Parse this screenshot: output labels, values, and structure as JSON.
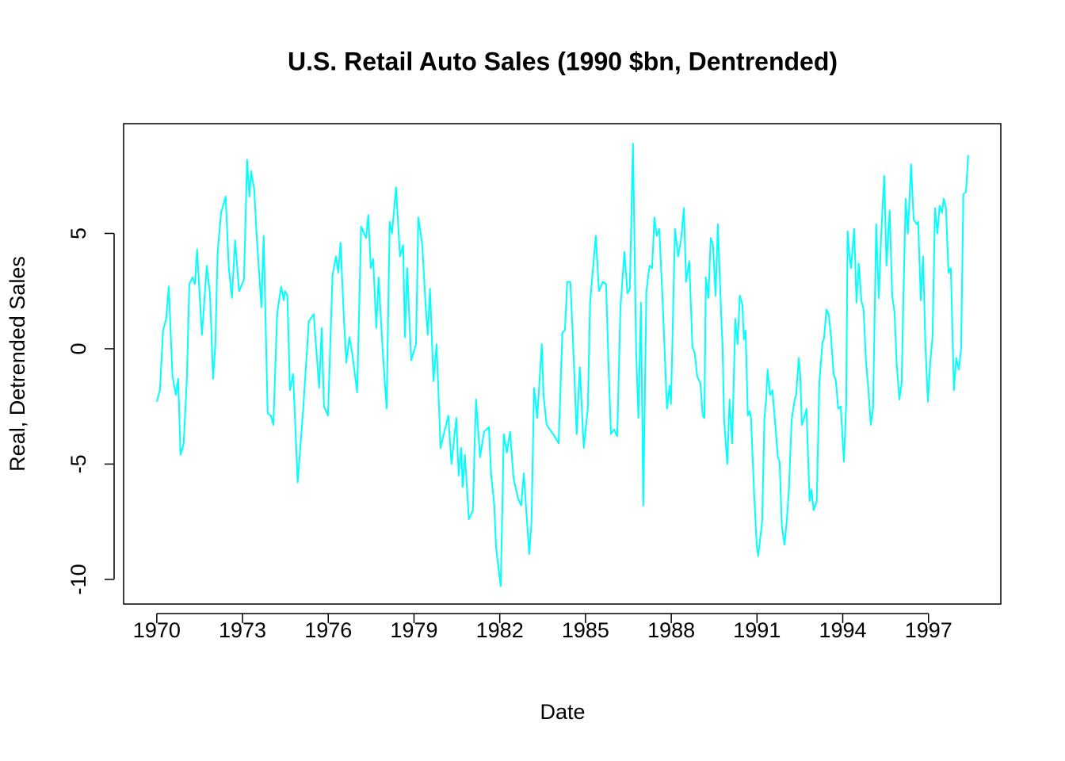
{
  "chart_data": {
    "type": "line",
    "title": "U.S. Retail Auto Sales (1990 $bn, Dentrended)",
    "x_label": "Date",
    "y_label": "Real, Detrended Sales",
    "xlim": [
      1968.84,
      1999.53
    ],
    "ylim": [
      -11.07,
      9.76
    ],
    "xticks": [
      1970,
      1973,
      1976,
      1979,
      1982,
      1985,
      1988,
      1991,
      1994,
      1997
    ],
    "yticks": [
      -10,
      -5,
      0,
      5
    ],
    "series": [
      {
        "color": "#00FFFF",
        "x": [
          1970.0,
          1970.11,
          1970.22,
          1970.33,
          1970.42,
          1970.55,
          1970.67,
          1970.75,
          1970.83,
          1970.94,
          1971.05,
          1971.14,
          1971.25,
          1971.33,
          1971.41,
          1971.58,
          1971.75,
          1971.86,
          1971.97,
          1972.05,
          1972.13,
          1972.25,
          1972.41,
          1972.52,
          1972.63,
          1972.74,
          1972.88,
          1973.05,
          1973.16,
          1973.24,
          1973.3,
          1973.41,
          1973.49,
          1973.66,
          1973.74,
          1973.88,
          1973.99,
          1974.08,
          1974.21,
          1974.35,
          1974.44,
          1974.49,
          1974.57,
          1974.66,
          1974.77,
          1974.93,
          1975.13,
          1975.32,
          1975.49,
          1975.68,
          1975.77,
          1975.85,
          1975.99,
          1976.15,
          1976.27,
          1976.35,
          1976.43,
          1976.54,
          1976.63,
          1976.74,
          1976.85,
          1977.01,
          1977.15,
          1977.32,
          1977.4,
          1977.49,
          1977.57,
          1977.68,
          1977.76,
          1977.9,
          1978.04,
          1978.15,
          1978.23,
          1978.37,
          1978.51,
          1978.62,
          1978.68,
          1978.76,
          1978.9,
          1979.07,
          1979.15,
          1979.29,
          1979.4,
          1979.48,
          1979.56,
          1979.68,
          1979.79,
          1979.93,
          1980.06,
          1980.2,
          1980.31,
          1980.48,
          1980.56,
          1980.65,
          1980.7,
          1980.78,
          1980.92,
          1981.06,
          1981.12,
          1981.17,
          1981.31,
          1981.45,
          1981.62,
          1981.7,
          1981.81,
          1981.87,
          1982.03,
          1982.09,
          1982.14,
          1982.25,
          1982.36,
          1982.48,
          1982.64,
          1982.75,
          1982.84,
          1983.03,
          1983.11,
          1983.2,
          1983.31,
          1983.47,
          1983.53,
          1983.64,
          1983.92,
          1984.06,
          1984.19,
          1984.28,
          1984.36,
          1984.47,
          1984.56,
          1984.69,
          1984.8,
          1984.94,
          1985.08,
          1985.16,
          1985.36,
          1985.47,
          1985.61,
          1985.72,
          1985.8,
          1985.89,
          1986.0,
          1986.11,
          1986.22,
          1986.36,
          1986.47,
          1986.55,
          1986.66,
          1986.77,
          1986.85,
          1986.94,
          1987.02,
          1987.13,
          1987.24,
          1987.33,
          1987.41,
          1987.49,
          1987.58,
          1987.69,
          1987.85,
          1987.94,
          1987.99,
          1988.13,
          1988.24,
          1988.35,
          1988.44,
          1988.52,
          1988.63,
          1988.74,
          1988.82,
          1988.91,
          1989.02,
          1989.1,
          1989.16,
          1989.21,
          1989.3,
          1989.38,
          1989.46,
          1989.55,
          1989.63,
          1989.77,
          1989.79,
          1989.85,
          1989.96,
          1990.04,
          1990.13,
          1990.24,
          1990.32,
          1990.4,
          1990.49,
          1990.54,
          1990.6,
          1990.68,
          1990.74,
          1990.79,
          1990.9,
          1990.99,
          1991.04,
          1991.18,
          1991.26,
          1991.32,
          1991.37,
          1991.46,
          1991.54,
          1991.62,
          1991.73,
          1991.79,
          1991.87,
          1991.96,
          1992.04,
          1992.12,
          1992.21,
          1992.32,
          1992.37,
          1992.46,
          1992.51,
          1992.57,
          1992.65,
          1992.73,
          1992.84,
          1992.9,
          1992.98,
          1993.09,
          1993.18,
          1993.29,
          1993.34,
          1993.43,
          1993.51,
          1993.59,
          1993.68,
          1993.76,
          1993.84,
          1993.93,
          1994.04,
          1994.12,
          1994.17,
          1994.23,
          1994.29,
          1994.4,
          1994.48,
          1994.56,
          1994.65,
          1994.73,
          1994.81,
          1994.9,
          1994.98,
          1995.06,
          1995.17,
          1995.26,
          1995.34,
          1995.45,
          1995.53,
          1995.64,
          1995.73,
          1995.81,
          1995.89,
          1995.98,
          1996.06,
          1996.12,
          1996.2,
          1996.28,
          1996.39,
          1996.48,
          1996.59,
          1996.64,
          1996.73,
          1996.81,
          1996.89,
          1996.98,
          1997.06,
          1997.14,
          1997.23,
          1997.31,
          1997.39,
          1997.47,
          1997.53,
          1997.61,
          1997.7,
          1997.78,
          1997.89,
          1997.97,
          1998.06,
          1998.14,
          1998.22,
          1998.31,
          1998.39
        ],
        "values": [
          -2.3,
          -1.8,
          0.8,
          1.3,
          2.7,
          -1.2,
          -2.0,
          -1.3,
          -4.6,
          -4.1,
          -1.4,
          2.8,
          3.1,
          2.8,
          4.3,
          0.6,
          3.6,
          2.4,
          -1.3,
          0.2,
          4.2,
          5.9,
          6.6,
          3.5,
          2.2,
          4.7,
          2.5,
          3.0,
          8.2,
          6.6,
          7.7,
          6.9,
          5.0,
          1.8,
          4.9,
          -2.8,
          -2.9,
          -3.3,
          1.5,
          2.7,
          2.1,
          2.5,
          2.3,
          -1.8,
          -1.1,
          -5.8,
          -2.5,
          1.2,
          1.5,
          -1.7,
          0.9,
          -2.5,
          -2.9,
          3.2,
          4.0,
          3.3,
          4.6,
          1.5,
          -0.6,
          0.5,
          -0.3,
          -1.9,
          5.3,
          4.8,
          5.8,
          3.5,
          3.9,
          0.9,
          3.1,
          0.0,
          -2.6,
          5.5,
          5.0,
          7.0,
          4.0,
          4.5,
          0.5,
          3.5,
          -0.5,
          0.2,
          5.7,
          4.5,
          2.0,
          0.6,
          2.6,
          -1.4,
          0.2,
          -4.3,
          -3.6,
          -2.9,
          -5.0,
          -3.0,
          -5.5,
          -4.3,
          -6.0,
          -4.6,
          -7.4,
          -7.0,
          -4.2,
          -2.2,
          -4.7,
          -3.6,
          -3.4,
          -5.5,
          -6.8,
          -8.6,
          -10.3,
          -7.0,
          -3.7,
          -4.5,
          -3.6,
          -5.6,
          -6.5,
          -6.8,
          -5.4,
          -8.9,
          -7.5,
          -1.7,
          -3.0,
          0.2,
          -2.0,
          -3.3,
          -3.8,
          -4.1,
          0.7,
          0.8,
          2.9,
          2.9,
          0.4,
          -3.7,
          -0.8,
          -4.3,
          -2.6,
          2.0,
          4.9,
          2.5,
          2.9,
          2.8,
          -0.5,
          -3.7,
          -3.5,
          -3.8,
          1.7,
          4.2,
          2.4,
          2.6,
          8.9,
          0.0,
          -3.0,
          2.0,
          -6.8,
          2.5,
          3.6,
          3.5,
          5.7,
          4.9,
          5.2,
          2.3,
          -2.6,
          -1.6,
          -2.4,
          5.2,
          4.0,
          4.8,
          6.1,
          2.9,
          3.8,
          0.1,
          -0.2,
          -1.2,
          -1.5,
          -2.9,
          -3.0,
          3.1,
          2.2,
          4.8,
          4.5,
          2.3,
          5.4,
          0.7,
          0.3,
          -3.1,
          -5.0,
          -2.2,
          -4.1,
          1.3,
          0.2,
          2.3,
          1.9,
          0.4,
          0.8,
          -2.9,
          -2.7,
          -3.0,
          -6.3,
          -8.5,
          -9.0,
          -7.5,
          -3.0,
          -2.2,
          -0.9,
          -2.0,
          -1.8,
          -3.0,
          -4.7,
          -4.9,
          -7.7,
          -8.5,
          -7.5,
          -6.0,
          -3.1,
          -2.2,
          -2.0,
          -0.4,
          -1.1,
          -3.3,
          -3.0,
          -2.6,
          -6.6,
          -6.1,
          -7.0,
          -6.6,
          -1.5,
          0.3,
          0.4,
          1.7,
          1.5,
          0.5,
          -1.1,
          -1.4,
          -2.6,
          -2.5,
          -4.9,
          -2.4,
          5.1,
          4.1,
          3.5,
          5.2,
          2.0,
          3.7,
          2.1,
          1.7,
          -0.5,
          -1.8,
          -3.3,
          -2.6,
          5.4,
          2.2,
          4.8,
          7.5,
          3.6,
          6.0,
          2.3,
          1.6,
          -0.7,
          -2.2,
          -1.5,
          2.1,
          6.5,
          5.0,
          8.0,
          5.6,
          5.4,
          5.5,
          2.1,
          4.0,
          0.2,
          -2.3,
          -0.6,
          0.5,
          6.1,
          5.0,
          6.2,
          5.9,
          6.5,
          6.1,
          3.3,
          3.5,
          -1.8,
          -0.4,
          -0.9,
          0.0,
          6.7,
          6.8,
          8.4
        ]
      }
    ]
  }
}
